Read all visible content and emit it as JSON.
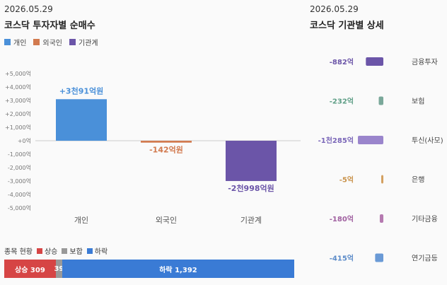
{
  "left": {
    "date": "2026.05.29",
    "title": "코스닥 투자자별 순매수"
  },
  "right": {
    "date": "2026.05.29",
    "title": "코스닥 기관별 상세"
  },
  "colors": {
    "individual": "#4a90d9",
    "foreign": "#d27a4f",
    "institution": "#6b55a8"
  },
  "chart_data": [
    {
      "type": "bar",
      "categories": [
        "개인",
        "외국인",
        "기관계"
      ],
      "values": [
        3091,
        -142,
        -2998
      ],
      "data_labels": [
        "+3천91억원",
        "-142억원",
        "-2천998억원"
      ],
      "legend": [
        "개인",
        "외국인",
        "기관계"
      ],
      "y_ticks": [
        "+5,000억",
        "+4,000억",
        "+3,000억",
        "+2,000억",
        "+1,000억",
        "+0억",
        "-1,000억",
        "-2,000억",
        "-3,000억",
        "-4,000억",
        "-5,000억"
      ],
      "ylim": [
        -5000,
        5000
      ],
      "legend_position": "top-left",
      "grid": false
    },
    {
      "type": "bar",
      "orientation": "horizontal",
      "categories": [
        "금융투자",
        "보험",
        "투신(사모)",
        "은행",
        "기타금융",
        "연기금등"
      ],
      "values": [
        -882,
        -232,
        -1285,
        -5,
        -180,
        -415
      ],
      "data_labels": [
        "-882억",
        "-232억",
        "-1천285억",
        "-5억",
        "-180억",
        "-415억"
      ],
      "colors": [
        "#6b55a8",
        "#7aa89a",
        "#9a85cc",
        "#d4a060",
        "#b57ab0",
        "#6a9ad6"
      ],
      "label_colors": [
        "#6b55a8",
        "#5e9e86",
        "#7a66b8",
        "#c9924a",
        "#a060a0",
        "#5a8ac8"
      ]
    }
  ],
  "stock_status": {
    "title": "종목 현황",
    "legend": [
      {
        "label": "상승",
        "color": "#d64545"
      },
      {
        "label": "보합",
        "color": "#999999"
      },
      {
        "label": "하락",
        "color": "#3a7bd5"
      }
    ],
    "rise": 309,
    "flat": 39,
    "fall": 1392,
    "rise_label": "상승 309",
    "flat_label": "39",
    "fall_label": "하락 1,392"
  }
}
